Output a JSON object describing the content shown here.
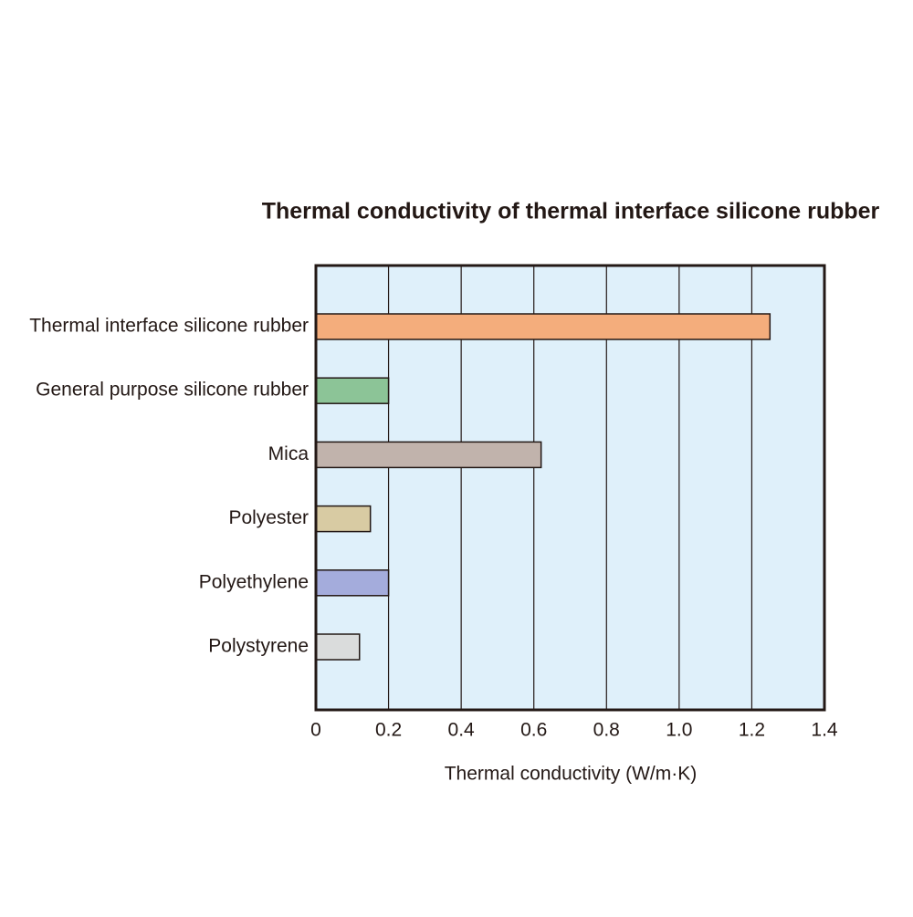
{
  "chart_data": {
    "type": "barh",
    "title": "Thermal conductivity of thermal interface silicone rubber",
    "xlabel": "Thermal conductivity (W/m·K)",
    "categories": [
      "Thermal interface silicone rubber",
      "General purpose silicone rubber",
      "Mica",
      "Polyester",
      "Polyethylene",
      "Polystyrene"
    ],
    "values": [
      1.25,
      0.2,
      0.62,
      0.15,
      0.2,
      0.12
    ],
    "colors": [
      "#f4ad7c",
      "#8cc497",
      "#c1b3ac",
      "#d8cba3",
      "#a4acdc",
      "#dadcdc"
    ],
    "xlim": [
      0,
      1.4
    ],
    "xticks": [
      0,
      0.2,
      0.4,
      0.6,
      0.8,
      {
        "value": 1,
        "label": "1.0"
      },
      1.2,
      1.4
    ],
    "grid": true
  }
}
